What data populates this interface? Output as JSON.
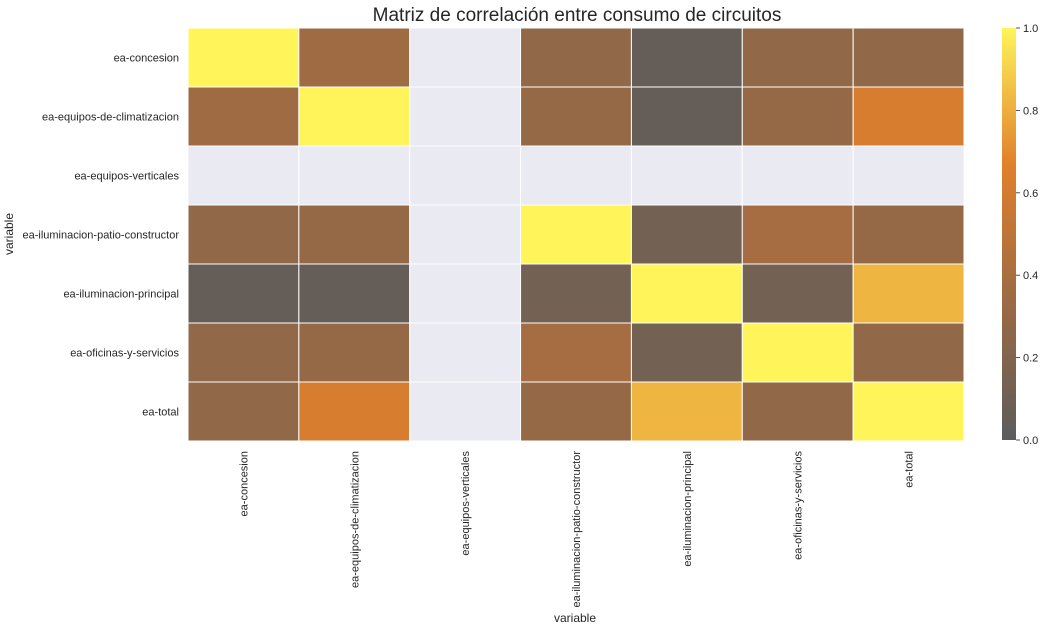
{
  "chart_data": {
    "type": "heatmap",
    "title": "Matriz de correlación entre consumo de circuitos",
    "xlabel": "variable",
    "ylabel": "variable",
    "rows": [
      "ea-concesion",
      "ea-equipos-de-climatizacion",
      "ea-equipos-verticales",
      "ea-iluminacion-patio-constructor",
      "ea-iluminacion-principal",
      "ea-oficinas-y-servicios",
      "ea-total"
    ],
    "columns": [
      "ea-concesion",
      "ea-equipos-de-climatizacion",
      "ea-equipos-verticales",
      "ea-iluminacion-patio-constructor",
      "ea-iluminacion-principal",
      "ea-oficinas-y-servicios",
      "ea-total"
    ],
    "values": [
      [
        1.0,
        0.35,
        null,
        0.28,
        0.05,
        0.28,
        0.28
      ],
      [
        0.35,
        1.0,
        null,
        0.3,
        0.05,
        0.3,
        0.62
      ],
      [
        null,
        null,
        null,
        null,
        null,
        null,
        null
      ],
      [
        0.28,
        0.3,
        null,
        1.0,
        0.12,
        0.38,
        0.3
      ],
      [
        0.05,
        0.05,
        null,
        0.12,
        1.0,
        0.12,
        0.82
      ],
      [
        0.28,
        0.3,
        null,
        0.38,
        0.12,
        1.0,
        0.28
      ],
      [
        0.28,
        0.62,
        null,
        0.3,
        0.82,
        0.28,
        1.0
      ]
    ],
    "vmin": 0.0,
    "vmax": 1.0,
    "colorbar_ticks": [
      "0.0",
      "0.2",
      "0.4",
      "0.6",
      "0.8",
      "1.0"
    ],
    "missing_color": "#eaeaf2",
    "colormap": [
      "#5c5c5c",
      "#9b6a44",
      "#e0802c",
      "#fff45a"
    ]
  }
}
